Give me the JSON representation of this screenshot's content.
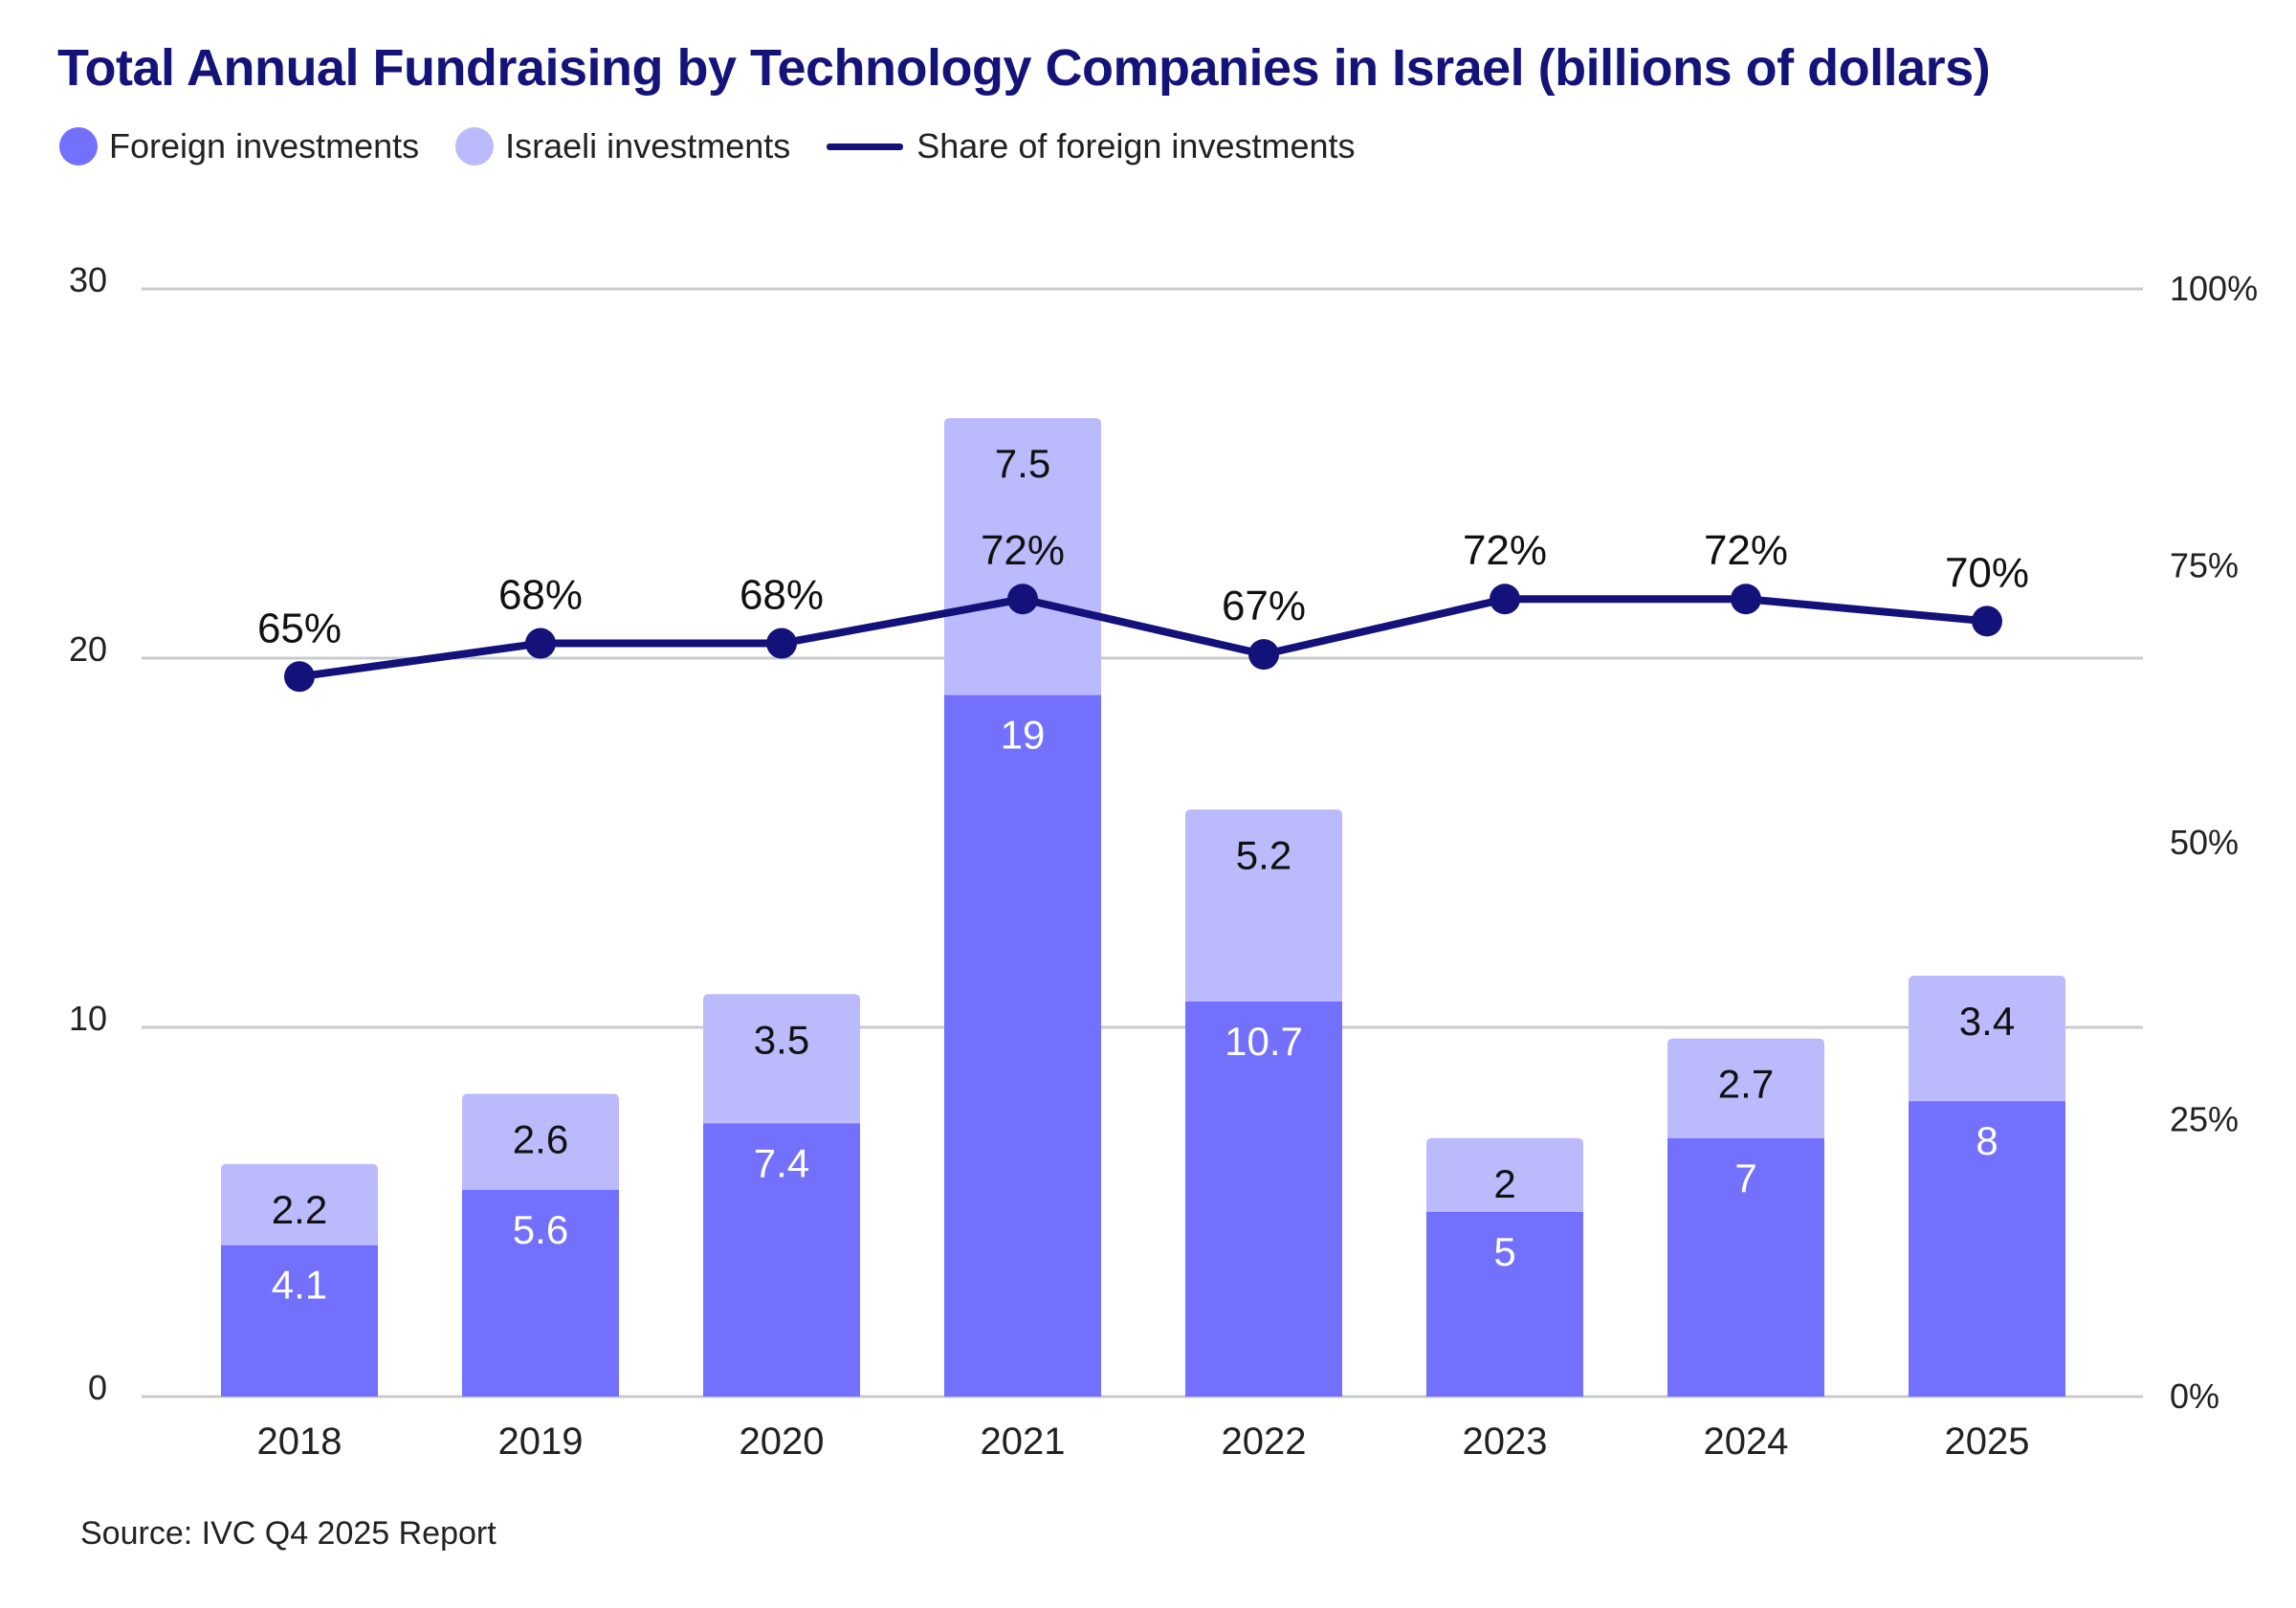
{
  "title": "Total Annual Fundraising by Technology Companies in Israel (billions of dollars)",
  "legend": {
    "foreign": "Foreign investments",
    "israeli": "Israeli investments",
    "share": "Share of foreign investments"
  },
  "source": "Source: IVC Q4 2025 Report",
  "colors": {
    "foreign": "#7270fd",
    "israeli": "#bbbafc",
    "share_line": "#13127a",
    "title": "#14137a",
    "grid": "#c7cbcc"
  },
  "chart_data": {
    "type": "bar",
    "stacked": true,
    "categories": [
      "2018",
      "2019",
      "2020",
      "2021",
      "2022",
      "2023",
      "2024",
      "2025"
    ],
    "series": [
      {
        "name": "Foreign investments",
        "values": [
          4.1,
          5.6,
          7.4,
          19,
          10.7,
          5,
          7,
          8
        ],
        "labels": [
          "4.1",
          "5.6",
          "7.4",
          "19",
          "10.7",
          "5",
          "7",
          "8"
        ]
      },
      {
        "name": "Israeli investments",
        "values": [
          2.2,
          2.6,
          3.5,
          7.5,
          5.2,
          2,
          2.7,
          3.4
        ],
        "labels": [
          "2.2",
          "2.6",
          "3.5",
          "7.5",
          "5.2",
          "2",
          "2.7",
          "3.4"
        ]
      }
    ],
    "line_series": {
      "name": "Share of foreign investments",
      "values": [
        65,
        68,
        68,
        72,
        67,
        72,
        72,
        70
      ],
      "labels": [
        "65%",
        "68%",
        "68%",
        "72%",
        "67%",
        "72%",
        "72%",
        "70%"
      ],
      "axis": "right"
    },
    "y_left": {
      "ylim": [
        0,
        30
      ],
      "ticks": [
        "0",
        "10",
        "20",
        "30"
      ]
    },
    "y_right": {
      "ylim": [
        0,
        100
      ],
      "ticks": [
        "0%",
        "25%",
        "50%",
        "75%",
        "100%"
      ]
    },
    "grid": true,
    "legend_position": "top-left"
  }
}
